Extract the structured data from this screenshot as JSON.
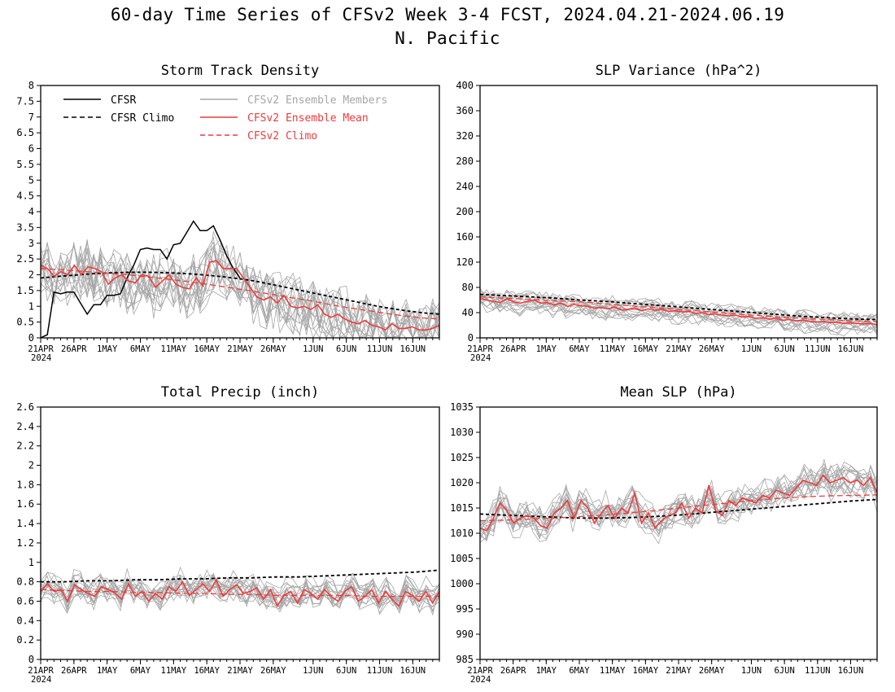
{
  "title": {
    "line1": "60-day Time Series of CFSv2 Week 3-4 FCST, 2024.04.21-2024.06.19",
    "line2": "N. Pacific"
  },
  "colors": {
    "cfsr": "#000000",
    "members": "#a6a6a6",
    "ens_mean": "#ee3b3b",
    "frame": "#000000"
  },
  "legend": {
    "cfsr": "CFSR",
    "cfsr_climo": "CFSR Climo",
    "members": "CFSv2 Ensemble Members",
    "ens_mean": "CFSv2 Ensemble Mean",
    "cfsv2_climo": "CFSv2 Climo"
  },
  "x_axis": {
    "days": 60,
    "ticks": [
      {
        "day": 0,
        "label": "21APR"
      },
      {
        "day": 5,
        "label": "26APR"
      },
      {
        "day": 10,
        "label": "1MAY"
      },
      {
        "day": 15,
        "label": "6MAY"
      },
      {
        "day": 20,
        "label": "11MAY"
      },
      {
        "day": 25,
        "label": "16MAY"
      },
      {
        "day": 30,
        "label": "21MAY"
      },
      {
        "day": 35,
        "label": "26MAY"
      },
      {
        "day": 41,
        "label": "1JUN"
      },
      {
        "day": 46,
        "label": "6JUN"
      },
      {
        "day": 51,
        "label": "11JUN"
      },
      {
        "day": 56,
        "label": "16JUN"
      }
    ],
    "year_label": "2024"
  },
  "chart_data": [
    {
      "type": "line",
      "title": "Storm Track Density",
      "ylim": [
        0,
        8
      ],
      "yticks": [
        0,
        0.5,
        1,
        1.5,
        2,
        2.5,
        3,
        3.5,
        4,
        4.5,
        5,
        5.5,
        6,
        6.5,
        7,
        7.5,
        8
      ],
      "legend_placement": "top",
      "member_count": 16,
      "series": [
        {
          "name": "CFSR",
          "style": "solid-black",
          "values": [
            0.0,
            0.1,
            1.45,
            1.4,
            1.45,
            1.45,
            1.1,
            0.75,
            1.05,
            1.05,
            1.35,
            1.35,
            1.4,
            1.9,
            2.3,
            2.8,
            2.85,
            2.8,
            2.8,
            2.5,
            2.95,
            3.0,
            3.35,
            3.7,
            3.4,
            3.4,
            3.55,
            3.1,
            2.6,
            2.2,
            1.9
          ]
        },
        {
          "name": "CFSR Climo",
          "style": "dashed-black",
          "values": [
            1.9,
            1.94,
            1.98,
            2.02,
            2.05,
            2.07,
            2.08,
            2.08,
            2.07,
            2.05,
            2.02,
            1.98,
            1.93,
            1.87,
            1.8,
            1.7,
            1.6,
            1.5,
            1.4,
            1.3,
            1.2,
            1.1,
            1.0,
            0.92,
            0.85,
            0.79,
            0.75
          ]
        },
        {
          "name": "CFSv2 Ensemble Mean",
          "style": "solid-red",
          "values": [
            2.3,
            2.2,
            1.95,
            2.1,
            2.0,
            2.3,
            2.0,
            2.25,
            2.2,
            2.1,
            1.7,
            1.9,
            2.0,
            1.8,
            1.75,
            2.0,
            1.95,
            1.6,
            1.8,
            2.0,
            1.7,
            1.6,
            1.55,
            1.9,
            1.65,
            2.4,
            2.45,
            2.2,
            2.2,
            2.2,
            1.9,
            1.6,
            1.3,
            1.2,
            1.3,
            1.1,
            1.35,
            1.0,
            0.95,
            1.0,
            0.9,
            1.05,
            0.75,
            0.65,
            0.75,
            0.6,
            0.5,
            0.45,
            0.55,
            0.4,
            0.35,
            0.25,
            0.45,
            0.3,
            0.3,
            0.35,
            0.25,
            0.25,
            0.3,
            0.4
          ]
        },
        {
          "name": "CFSv2 Climo",
          "style": "dashed-red",
          "values": [
            2.2,
            2.17,
            2.13,
            2.09,
            2.05,
            2.01,
            1.96,
            1.9,
            1.84,
            1.77,
            1.7,
            1.62,
            1.54,
            1.46,
            1.37,
            1.28,
            1.2,
            1.1,
            1.0,
            0.92,
            0.84,
            0.76,
            0.69,
            0.63,
            0.6
          ]
        }
      ]
    },
    {
      "type": "line",
      "title": "SLP Variance (hPa^2)",
      "ylim": [
        0,
        400
      ],
      "yticks": [
        0,
        40,
        80,
        120,
        160,
        200,
        240,
        280,
        320,
        360,
        400
      ],
      "member_count": 16,
      "series": [
        {
          "name": "CFSR Climo",
          "style": "dashed-black",
          "values": [
            69,
            67,
            65,
            63,
            60,
            58,
            55,
            52,
            49,
            46,
            43,
            40,
            37,
            34,
            32,
            30,
            29
          ]
        },
        {
          "name": "CFSv2 Ensemble Mean",
          "style": "solid-red",
          "values": [
            62,
            60,
            58,
            56,
            62,
            57,
            55,
            58,
            60,
            55,
            56,
            52,
            55,
            50,
            53,
            51,
            50,
            47,
            48,
            46,
            49,
            44,
            45,
            47,
            43,
            46,
            44,
            45,
            42,
            43,
            41,
            42,
            39,
            40,
            37,
            38,
            36,
            35,
            36,
            33,
            34,
            31,
            32,
            30,
            31,
            28,
            29,
            27,
            28,
            26,
            25,
            26,
            24,
            25,
            23,
            24,
            23,
            22,
            23,
            21
          ]
        },
        {
          "name": "CFSv2 Climo",
          "style": "dashed-red",
          "values": [
            65,
            63,
            61,
            59,
            57,
            54,
            51,
            48,
            45,
            42,
            39,
            36,
            33,
            31,
            29,
            27,
            26
          ]
        }
      ]
    },
    {
      "type": "line",
      "title": "Total Precip (inch)",
      "ylim": [
        0,
        2.6
      ],
      "yticks": [
        0,
        0.2,
        0.4,
        0.6,
        0.8,
        1,
        1.2,
        1.4,
        1.6,
        1.8,
        2,
        2.2,
        2.4,
        2.6
      ],
      "member_count": 16,
      "series": [
        {
          "name": "CFSR Climo",
          "style": "dashed-black",
          "values": [
            0.8,
            0.8,
            0.81,
            0.81,
            0.82,
            0.82,
            0.83,
            0.83,
            0.84,
            0.84,
            0.85,
            0.85,
            0.86,
            0.87,
            0.88,
            0.89,
            0.9,
            0.92
          ]
        },
        {
          "name": "CFSv2 Ensemble Mean",
          "style": "solid-red",
          "values": [
            0.7,
            0.78,
            0.7,
            0.72,
            0.6,
            0.77,
            0.72,
            0.68,
            0.65,
            0.75,
            0.72,
            0.68,
            0.62,
            0.78,
            0.65,
            0.7,
            0.6,
            0.68,
            0.62,
            0.75,
            0.7,
            0.8,
            0.66,
            0.72,
            0.78,
            0.7,
            0.82,
            0.65,
            0.72,
            0.77,
            0.68,
            0.7,
            0.74,
            0.62,
            0.72,
            0.55,
            0.66,
            0.7,
            0.58,
            0.72,
            0.68,
            0.62,
            0.72,
            0.65,
            0.6,
            0.7,
            0.75,
            0.6,
            0.65,
            0.72,
            0.58,
            0.7,
            0.62,
            0.55,
            0.7,
            0.66,
            0.6,
            0.7,
            0.58,
            0.7
          ]
        },
        {
          "name": "CFSv2 Climo",
          "style": "dashed-red",
          "values": [
            0.72,
            0.71,
            0.7,
            0.7,
            0.69,
            0.69,
            0.68,
            0.68,
            0.67,
            0.67,
            0.66,
            0.66,
            0.66,
            0.66,
            0.65,
            0.65,
            0.65,
            0.65
          ]
        }
      ]
    },
    {
      "type": "line",
      "title": "Mean SLP (hPa)",
      "ylim": [
        985,
        1035
      ],
      "yticks": [
        985,
        990,
        995,
        1000,
        1005,
        1010,
        1015,
        1020,
        1025,
        1030,
        1035
      ],
      "member_count": 16,
      "series": [
        {
          "name": "CFSR Climo",
          "style": "dashed-black",
          "values": [
            1013.8,
            1013.6,
            1013.4,
            1013.2,
            1013.0,
            1013.0,
            1013.1,
            1013.3,
            1013.6,
            1014.0,
            1014.4,
            1014.8,
            1015.2,
            1015.6,
            1016.0,
            1016.4,
            1016.7
          ]
        },
        {
          "name": "CFSv2 Ensemble Mean",
          "style": "solid-red",
          "values": [
            1011,
            1010.5,
            1013,
            1016,
            1014.5,
            1012,
            1013,
            1013.5,
            1013,
            1011.5,
            1011,
            1014,
            1015,
            1016.5,
            1013,
            1016.5,
            1015,
            1012,
            1014,
            1015.5,
            1013,
            1015,
            1014,
            1018,
            1012,
            1014,
            1011,
            1012.5,
            1013.5,
            1014,
            1016,
            1013,
            1015,
            1014,
            1019.5,
            1014.5,
            1013.5,
            1016.5,
            1015.5,
            1017,
            1016.5,
            1016,
            1017.5,
            1017,
            1018.5,
            1018,
            1017.5,
            1019,
            1020.5,
            1020,
            1019.5,
            1021.5,
            1020,
            1020.5,
            1021,
            1020,
            1020.5,
            1019.5,
            1021,
            1018
          ]
        },
        {
          "name": "CFSv2 Climo",
          "style": "dashed-red",
          "values": [
            1012.5,
            1012.6,
            1012.8,
            1013.0,
            1013.3,
            1013.6,
            1014.0,
            1014.5,
            1015.0,
            1015.5,
            1016.0,
            1016.5,
            1016.9,
            1017.2,
            1017.4,
            1017.5,
            1017.6
          ]
        }
      ]
    }
  ]
}
